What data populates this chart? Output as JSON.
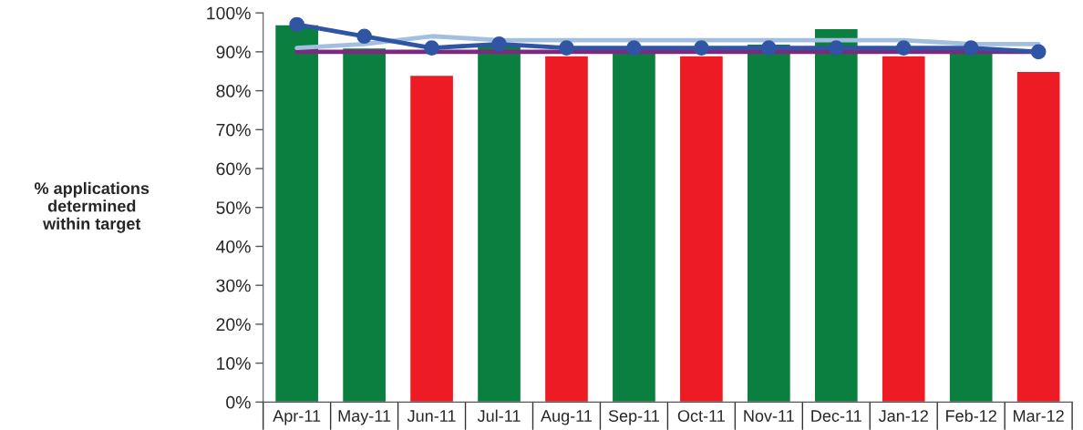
{
  "chart_data": {
    "type": "bar",
    "ylabel": "% applications\ndetermined\nwithin target",
    "categories": [
      "Apr-11",
      "May-11",
      "Jun-11",
      "Jul-11",
      "Aug-11",
      "Sep-11",
      "Oct-11",
      "Nov-11",
      "Dec-11",
      "Jan-12",
      "Feb-12",
      "Mar-12"
    ],
    "ylim": [
      0,
      100
    ],
    "yticks": [
      {
        "value": 0,
        "label": "0%"
      },
      {
        "value": 10,
        "label": "10%"
      },
      {
        "value": 20,
        "label": "20%"
      },
      {
        "value": 30,
        "label": "30%"
      },
      {
        "value": 40,
        "label": "40%"
      },
      {
        "value": 50,
        "label": "50%"
      },
      {
        "value": 60,
        "label": "60%"
      },
      {
        "value": 70,
        "label": "70%"
      },
      {
        "value": 80,
        "label": "80%"
      },
      {
        "value": 90,
        "label": "90%"
      },
      {
        "value": 100,
        "label": "100%"
      }
    ],
    "grid": false,
    "legend": false,
    "series": [
      {
        "values": [
          97,
          91,
          84,
          92,
          89,
          90,
          89,
          92,
          96,
          89,
          90,
          85
        ],
        "colors": [
          "#0a7f3f",
          "#0a7f3f",
          "#ed1c24",
          "#0a7f3f",
          "#ed1c24",
          "#0a7f3f",
          "#ed1c24",
          "#0a7f3f",
          "#0a7f3f",
          "#ed1c24",
          "#0a7f3f",
          "#ed1c24"
        ]
      },
      {
        "type": "line",
        "color": "#7d2a7e",
        "marker": "none",
        "values": [
          90,
          90,
          90,
          90,
          90,
          90,
          90,
          90,
          90,
          90,
          90,
          90
        ]
      },
      {
        "type": "line",
        "color": "#a3bfdf",
        "marker": "none",
        "values": [
          91,
          92,
          94,
          93,
          93,
          93,
          93,
          93,
          93,
          93,
          92,
          92
        ]
      },
      {
        "type": "line",
        "color": "#3055a5",
        "marker": "circle",
        "values": [
          97,
          94,
          91,
          92,
          91,
          91,
          91,
          91,
          91,
          91,
          91,
          90
        ]
      }
    ]
  }
}
